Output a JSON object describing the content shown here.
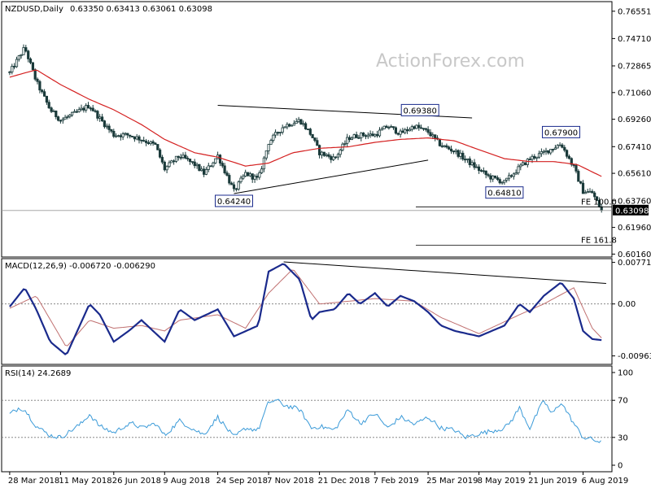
{
  "watermark": "ActionForex.com",
  "colors": {
    "up": "#1a3a8c",
    "candle": "#1a3a3a",
    "ma": "#d42020",
    "macd": "#1a2a8c",
    "signal": "#c07070",
    "rsi": "#3a9ad8",
    "trendline": "#000000",
    "badge_bg": "#000000"
  },
  "chart_data": [
    {
      "type": "line",
      "panel": "price",
      "header": {
        "symbol_label": "NZDUSD,Daily",
        "ohlc_label": "0.63350 0.63413 0.63061 0.63098"
      },
      "y_ticks": [
        "0.76551",
        "0.74710",
        "0.72865",
        "0.71060",
        "0.69260",
        "0.67410",
        "0.65610",
        "0.63760",
        "0.61960",
        "0.60160"
      ],
      "ylim": [
        0.5996,
        0.772
      ],
      "current_price_label": "0.63098",
      "current_price": 0.63098,
      "close_series": [
        {
          "x": "2018-03-28",
          "y": 0.724
        },
        {
          "x": "2018-04-10",
          "y": 0.741
        },
        {
          "x": "2018-04-20",
          "y": 0.718
        },
        {
          "x": "2018-05-02",
          "y": 0.699
        },
        {
          "x": "2018-05-11",
          "y": 0.692
        },
        {
          "x": "2018-05-22",
          "y": 0.696
        },
        {
          "x": "2018-06-05",
          "y": 0.702
        },
        {
          "x": "2018-06-14",
          "y": 0.693
        },
        {
          "x": "2018-06-26",
          "y": 0.682
        },
        {
          "x": "2018-07-09",
          "y": 0.682
        },
        {
          "x": "2018-07-20",
          "y": 0.679
        },
        {
          "x": "2018-08-01",
          "y": 0.675
        },
        {
          "x": "2018-08-09",
          "y": 0.659
        },
        {
          "x": "2018-08-22",
          "y": 0.668
        },
        {
          "x": "2018-09-04",
          "y": 0.662
        },
        {
          "x": "2018-09-12",
          "y": 0.656
        },
        {
          "x": "2018-09-24",
          "y": 0.668
        },
        {
          "x": "2018-10-08",
          "y": 0.644
        },
        {
          "x": "2018-10-18",
          "y": 0.656
        },
        {
          "x": "2018-10-29",
          "y": 0.652
        },
        {
          "x": "2018-11-07",
          "y": 0.677
        },
        {
          "x": "2018-11-20",
          "y": 0.688
        },
        {
          "x": "2018-12-04",
          "y": 0.692
        },
        {
          "x": "2018-12-14",
          "y": 0.682
        },
        {
          "x": "2018-12-21",
          "y": 0.67
        },
        {
          "x": "2019-01-03",
          "y": 0.666
        },
        {
          "x": "2019-01-15",
          "y": 0.68
        },
        {
          "x": "2019-01-25",
          "y": 0.682
        },
        {
          "x": "2019-02-07",
          "y": 0.682
        },
        {
          "x": "2019-02-18",
          "y": 0.688
        },
        {
          "x": "2019-03-01",
          "y": 0.683
        },
        {
          "x": "2019-03-13",
          "y": 0.688
        },
        {
          "x": "2019-03-25",
          "y": 0.684
        },
        {
          "x": "2019-04-05",
          "y": 0.675
        },
        {
          "x": "2019-04-17",
          "y": 0.671
        },
        {
          "x": "2019-05-02",
          "y": 0.662
        },
        {
          "x": "2019-05-16",
          "y": 0.654
        },
        {
          "x": "2019-05-30",
          "y": 0.65
        },
        {
          "x": "2019-06-12",
          "y": 0.66
        },
        {
          "x": "2019-06-21",
          "y": 0.666
        },
        {
          "x": "2019-07-03",
          "y": 0.67
        },
        {
          "x": "2019-07-18",
          "y": 0.676
        },
        {
          "x": "2019-07-29",
          "y": 0.66
        },
        {
          "x": "2019-08-06",
          "y": 0.644
        },
        {
          "x": "2019-08-14",
          "y": 0.643
        },
        {
          "x": "2019-08-22",
          "y": 0.631
        }
      ],
      "ma_series": [
        {
          "x": "2018-03-28",
          "y": 0.721
        },
        {
          "x": "2018-04-20",
          "y": 0.726
        },
        {
          "x": "2018-05-11",
          "y": 0.716
        },
        {
          "x": "2018-06-05",
          "y": 0.706
        },
        {
          "x": "2018-06-26",
          "y": 0.699
        },
        {
          "x": "2018-07-20",
          "y": 0.689
        },
        {
          "x": "2018-08-09",
          "y": 0.679
        },
        {
          "x": "2018-09-04",
          "y": 0.67
        },
        {
          "x": "2018-09-24",
          "y": 0.667
        },
        {
          "x": "2018-10-18",
          "y": 0.661
        },
        {
          "x": "2018-11-07",
          "y": 0.663
        },
        {
          "x": "2018-11-28",
          "y": 0.67
        },
        {
          "x": "2018-12-21",
          "y": 0.673
        },
        {
          "x": "2019-01-15",
          "y": 0.674
        },
        {
          "x": "2019-02-07",
          "y": 0.677
        },
        {
          "x": "2019-03-01",
          "y": 0.679
        },
        {
          "x": "2019-03-25",
          "y": 0.68
        },
        {
          "x": "2019-04-17",
          "y": 0.678
        },
        {
          "x": "2019-05-08",
          "y": 0.672
        },
        {
          "x": "2019-05-30",
          "y": 0.666
        },
        {
          "x": "2019-06-21",
          "y": 0.664
        },
        {
          "x": "2019-07-12",
          "y": 0.664
        },
        {
          "x": "2019-08-01",
          "y": 0.662
        },
        {
          "x": "2019-08-22",
          "y": 0.654
        }
      ],
      "annotations": [
        {
          "text": "0.64240",
          "x": "2018-10-08",
          "y": 0.6424
        },
        {
          "text": "0.69380",
          "x": "2019-03-18",
          "y": 0.6938
        },
        {
          "text": "0.64810",
          "x": "2019-05-30",
          "y": 0.6481
        },
        {
          "text": "0.67900",
          "x": "2019-07-18",
          "y": 0.679
        }
      ],
      "levels": [
        {
          "text": "FE 100.0",
          "y": 0.6335
        },
        {
          "text": "FE 161.8",
          "y": 0.6075
        }
      ],
      "trendlines": [
        {
          "from": {
            "x": "2018-09-24",
            "y": 0.702
          },
          "to": {
            "x": "2019-05-02",
            "y": 0.6935
          }
        },
        {
          "from": {
            "x": "2018-10-08",
            "y": 0.6424
          },
          "to": {
            "x": "2019-03-25",
            "y": 0.665
          }
        }
      ]
    },
    {
      "type": "line",
      "panel": "macd",
      "header_label": "MACD(12,26,9) -0.006720 -0.006290",
      "y_ticks": [
        "0.007712",
        "0.00",
        "-0.009632"
      ],
      "ylim": [
        -0.0112,
        0.0084
      ],
      "zero_line": 0.0,
      "macd_series": [
        {
          "x": "2018-03-28",
          "y": -0.0005
        },
        {
          "x": "2018-04-10",
          "y": 0.003
        },
        {
          "x": "2018-04-20",
          "y": -0.001
        },
        {
          "x": "2018-05-02",
          "y": -0.007
        },
        {
          "x": "2018-05-16",
          "y": -0.0095
        },
        {
          "x": "2018-06-05",
          "y": 0.0
        },
        {
          "x": "2018-06-14",
          "y": -0.002
        },
        {
          "x": "2018-06-26",
          "y": -0.007
        },
        {
          "x": "2018-07-09",
          "y": -0.005
        },
        {
          "x": "2018-07-20",
          "y": -0.003
        },
        {
          "x": "2018-08-09",
          "y": -0.007
        },
        {
          "x": "2018-08-22",
          "y": -0.001
        },
        {
          "x": "2018-09-04",
          "y": -0.003
        },
        {
          "x": "2018-09-24",
          "y": -0.001
        },
        {
          "x": "2018-10-08",
          "y": -0.006
        },
        {
          "x": "2018-10-29",
          "y": -0.004
        },
        {
          "x": "2018-11-07",
          "y": 0.006
        },
        {
          "x": "2018-11-20",
          "y": 0.0075
        },
        {
          "x": "2018-12-04",
          "y": 0.0045
        },
        {
          "x": "2018-12-14",
          "y": -0.003
        },
        {
          "x": "2018-12-21",
          "y": -0.0015
        },
        {
          "x": "2019-01-03",
          "y": -0.001
        },
        {
          "x": "2019-01-15",
          "y": 0.002
        },
        {
          "x": "2019-01-25",
          "y": 0.0
        },
        {
          "x": "2019-02-07",
          "y": 0.002
        },
        {
          "x": "2019-02-18",
          "y": -0.0005
        },
        {
          "x": "2019-03-01",
          "y": 0.0015
        },
        {
          "x": "2019-03-13",
          "y": 0.0005
        },
        {
          "x": "2019-03-25",
          "y": -0.0015
        },
        {
          "x": "2019-04-05",
          "y": -0.004
        },
        {
          "x": "2019-04-17",
          "y": -0.005
        },
        {
          "x": "2019-05-08",
          "y": -0.006
        },
        {
          "x": "2019-05-30",
          "y": -0.004
        },
        {
          "x": "2019-06-12",
          "y": 0.0
        },
        {
          "x": "2019-06-21",
          "y": -0.0015
        },
        {
          "x": "2019-07-03",
          "y": 0.0015
        },
        {
          "x": "2019-07-18",
          "y": 0.004
        },
        {
          "x": "2019-07-29",
          "y": 0.001
        },
        {
          "x": "2019-08-06",
          "y": -0.005
        },
        {
          "x": "2019-08-14",
          "y": -0.0065
        },
        {
          "x": "2019-08-22",
          "y": -0.0067
        }
      ],
      "signal_series": [
        {
          "x": "2018-03-28",
          "y": -0.0008
        },
        {
          "x": "2018-04-20",
          "y": 0.0015
        },
        {
          "x": "2018-05-16",
          "y": -0.008
        },
        {
          "x": "2018-06-05",
          "y": -0.003
        },
        {
          "x": "2018-06-26",
          "y": -0.0045
        },
        {
          "x": "2018-07-20",
          "y": -0.004
        },
        {
          "x": "2018-08-09",
          "y": -0.005
        },
        {
          "x": "2018-08-22",
          "y": -0.003
        },
        {
          "x": "2018-09-24",
          "y": -0.002
        },
        {
          "x": "2018-10-18",
          "y": -0.0045
        },
        {
          "x": "2018-11-07",
          "y": 0.002
        },
        {
          "x": "2018-11-28",
          "y": 0.0065
        },
        {
          "x": "2018-12-21",
          "y": 0.0
        },
        {
          "x": "2019-01-15",
          "y": 0.0005
        },
        {
          "x": "2019-02-07",
          "y": 0.001
        },
        {
          "x": "2019-03-13",
          "y": 0.0005
        },
        {
          "x": "2019-04-05",
          "y": -0.0025
        },
        {
          "x": "2019-05-08",
          "y": -0.0055
        },
        {
          "x": "2019-06-12",
          "y": -0.002
        },
        {
          "x": "2019-07-03",
          "y": 0.0
        },
        {
          "x": "2019-07-29",
          "y": 0.003
        },
        {
          "x": "2019-08-14",
          "y": -0.0045
        },
        {
          "x": "2019-08-22",
          "y": -0.0063
        }
      ],
      "trendline": {
        "from": {
          "x": "2018-11-20",
          "y": 0.0078
        },
        "to": {
          "x": "2019-08-26",
          "y": 0.0038
        }
      }
    },
    {
      "type": "line",
      "panel": "rsi",
      "header_label": "RSI(14) 24.2689",
      "y_ticks": [
        "100",
        "70",
        "30",
        "0"
      ],
      "ylim": [
        0,
        100
      ],
      "levels": [
        70,
        30
      ],
      "rsi_series": [
        {
          "x": "2018-03-28",
          "y": 55
        },
        {
          "x": "2018-04-05",
          "y": 62
        },
        {
          "x": "2018-04-10",
          "y": 60
        },
        {
          "x": "2018-04-20",
          "y": 42
        },
        {
          "x": "2018-05-02",
          "y": 32
        },
        {
          "x": "2018-05-11",
          "y": 30
        },
        {
          "x": "2018-05-16",
          "y": 34
        },
        {
          "x": "2018-05-29",
          "y": 45
        },
        {
          "x": "2018-06-05",
          "y": 55
        },
        {
          "x": "2018-06-14",
          "y": 42
        },
        {
          "x": "2018-06-26",
          "y": 35
        },
        {
          "x": "2018-07-05",
          "y": 42
        },
        {
          "x": "2018-07-13",
          "y": 45
        },
        {
          "x": "2018-07-20",
          "y": 40
        },
        {
          "x": "2018-08-01",
          "y": 45
        },
        {
          "x": "2018-08-09",
          "y": 32
        },
        {
          "x": "2018-08-22",
          "y": 48
        },
        {
          "x": "2018-09-04",
          "y": 38
        },
        {
          "x": "2018-09-12",
          "y": 33
        },
        {
          "x": "2018-09-24",
          "y": 52
        },
        {
          "x": "2018-10-08",
          "y": 30
        },
        {
          "x": "2018-10-18",
          "y": 40
        },
        {
          "x": "2018-10-29",
          "y": 38
        },
        {
          "x": "2018-11-07",
          "y": 68
        },
        {
          "x": "2018-11-14",
          "y": 70
        },
        {
          "x": "2018-11-20",
          "y": 65
        },
        {
          "x": "2018-12-04",
          "y": 60
        },
        {
          "x": "2018-12-14",
          "y": 40
        },
        {
          "x": "2018-12-21",
          "y": 42
        },
        {
          "x": "2019-01-03",
          "y": 38
        },
        {
          "x": "2019-01-15",
          "y": 60
        },
        {
          "x": "2019-01-25",
          "y": 45
        },
        {
          "x": "2019-02-07",
          "y": 56
        },
        {
          "x": "2019-02-18",
          "y": 40
        },
        {
          "x": "2019-03-01",
          "y": 52
        },
        {
          "x": "2019-03-13",
          "y": 44
        },
        {
          "x": "2019-03-25",
          "y": 52
        },
        {
          "x": "2019-04-05",
          "y": 40
        },
        {
          "x": "2019-04-17",
          "y": 38
        },
        {
          "x": "2019-04-26",
          "y": 30
        },
        {
          "x": "2019-05-08",
          "y": 34
        },
        {
          "x": "2019-05-30",
          "y": 40
        },
        {
          "x": "2019-06-05",
          "y": 48
        },
        {
          "x": "2019-06-12",
          "y": 62
        },
        {
          "x": "2019-06-21",
          "y": 40
        },
        {
          "x": "2019-07-03",
          "y": 70
        },
        {
          "x": "2019-07-10",
          "y": 55
        },
        {
          "x": "2019-07-18",
          "y": 68
        },
        {
          "x": "2019-07-29",
          "y": 45
        },
        {
          "x": "2019-08-06",
          "y": 30
        },
        {
          "x": "2019-08-14",
          "y": 28
        },
        {
          "x": "2019-08-22",
          "y": 24
        }
      ]
    }
  ],
  "x_axis": {
    "xlim": [
      "2018-03-21",
      "2019-08-31"
    ],
    "ticks": [
      {
        "label": "28 Mar 2018",
        "x": "2018-03-28"
      },
      {
        "label": "11 May 2018",
        "x": "2018-05-11"
      },
      {
        "label": "26 Jun 2018",
        "x": "2018-06-26"
      },
      {
        "label": "9 Aug 2018",
        "x": "2018-08-09"
      },
      {
        "label": "24 Sep 2018",
        "x": "2018-09-24"
      },
      {
        "label": "7 Nov 2018",
        "x": "2018-11-07"
      },
      {
        "label": "21 Dec 2018",
        "x": "2018-12-21"
      },
      {
        "label": "7 Feb 2019",
        "x": "2019-02-07"
      },
      {
        "label": "25 Mar 2019",
        "x": "2019-03-25"
      },
      {
        "label": "8 May 2019",
        "x": "2019-05-08"
      },
      {
        "label": "21 Jun 2019",
        "x": "2019-06-21"
      },
      {
        "label": "6 Aug 2019",
        "x": "2019-08-06"
      }
    ]
  }
}
